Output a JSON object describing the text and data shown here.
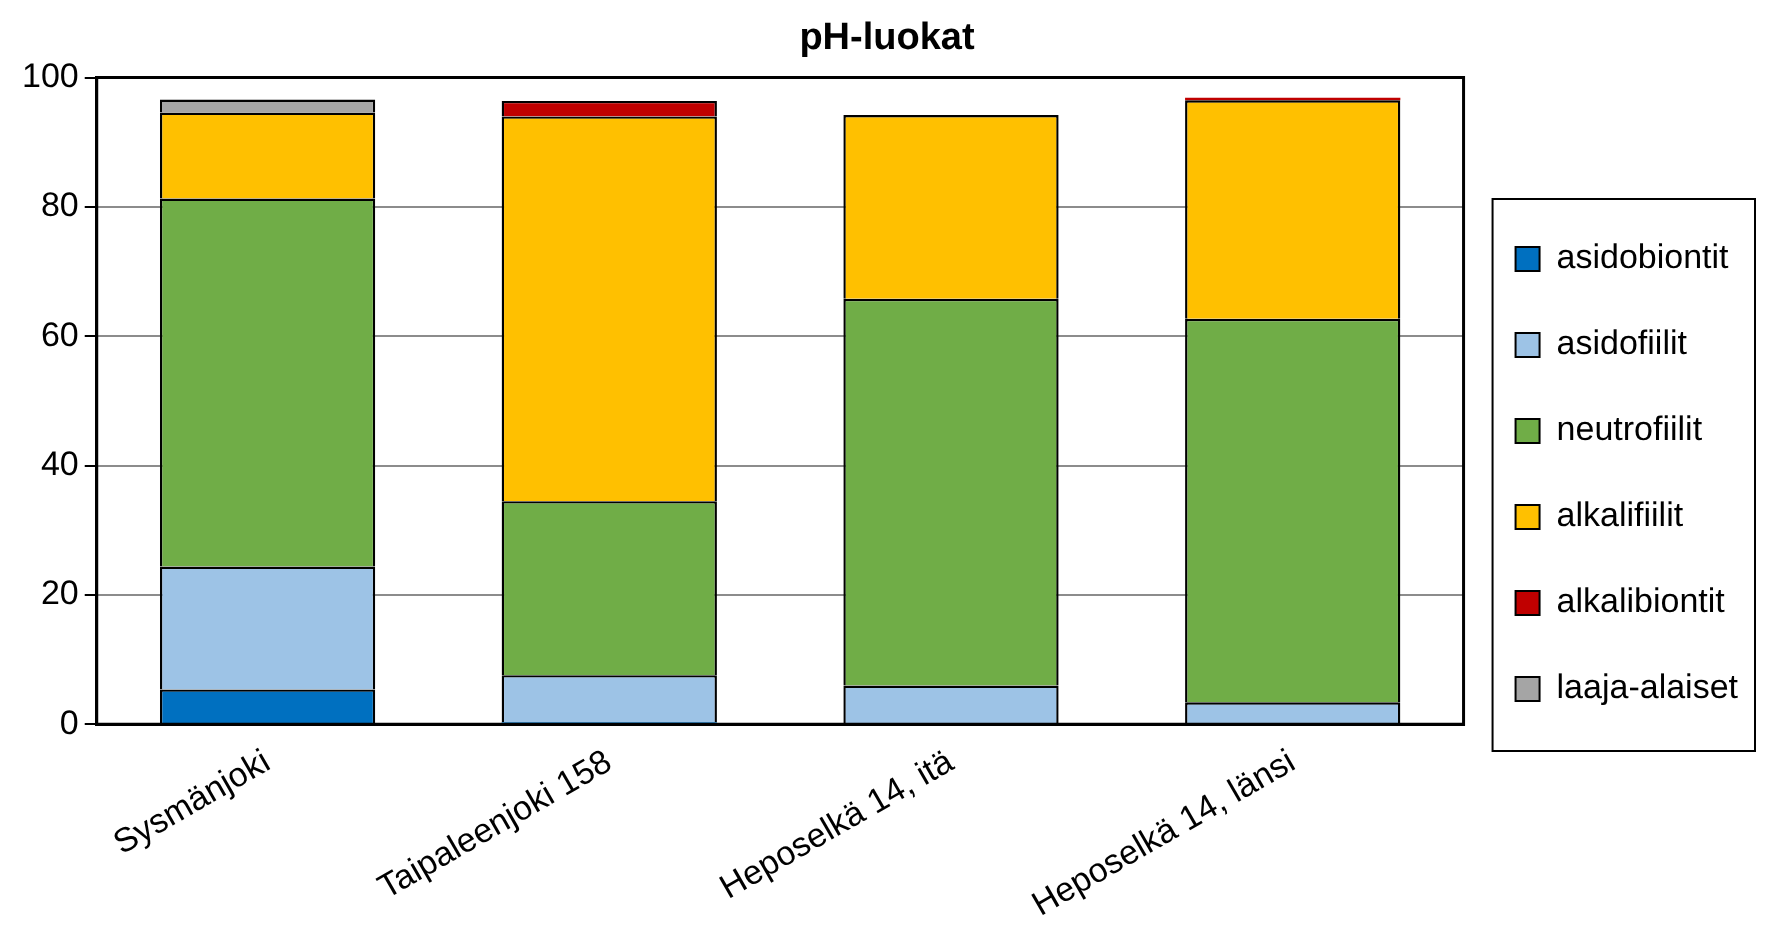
{
  "chart_data": {
    "type": "bar",
    "title": "pH-luokat",
    "stacked": true,
    "categories": [
      "Sysmänjoki",
      "Taipaleenjoki 158",
      "Heposelkä 14, itä",
      "Heposelkä 14, länsi"
    ],
    "series": [
      {
        "name": "asidobiontit",
        "color": "#0070c0",
        "values": [
          5.4,
          0.3,
          0,
          0
        ]
      },
      {
        "name": "asidofiilit",
        "color": "#9dc3e6",
        "values": [
          19.0,
          7.3,
          6.0,
          3.4
        ]
      },
      {
        "name": "neutrofiilit",
        "color": "#70ad47",
        "values": [
          56.9,
          26.9,
          59.8,
          59.3
        ]
      },
      {
        "name": "alkalifiilit",
        "color": "#ffc000",
        "values": [
          13.3,
          59.5,
          28.4,
          33.8
        ]
      },
      {
        "name": "alkalibiontit",
        "color": "#c00000",
        "values": [
          0,
          2.4,
          0,
          0.4
        ]
      },
      {
        "name": "laaja-alaiset",
        "color": "#a5a5a5",
        "values": [
          2.0,
          0,
          0,
          0
        ]
      }
    ],
    "ylim": [
      0,
      100
    ],
    "yticks": [
      0,
      20,
      40,
      60,
      80,
      100
    ],
    "grid": "y",
    "legend": "right"
  }
}
